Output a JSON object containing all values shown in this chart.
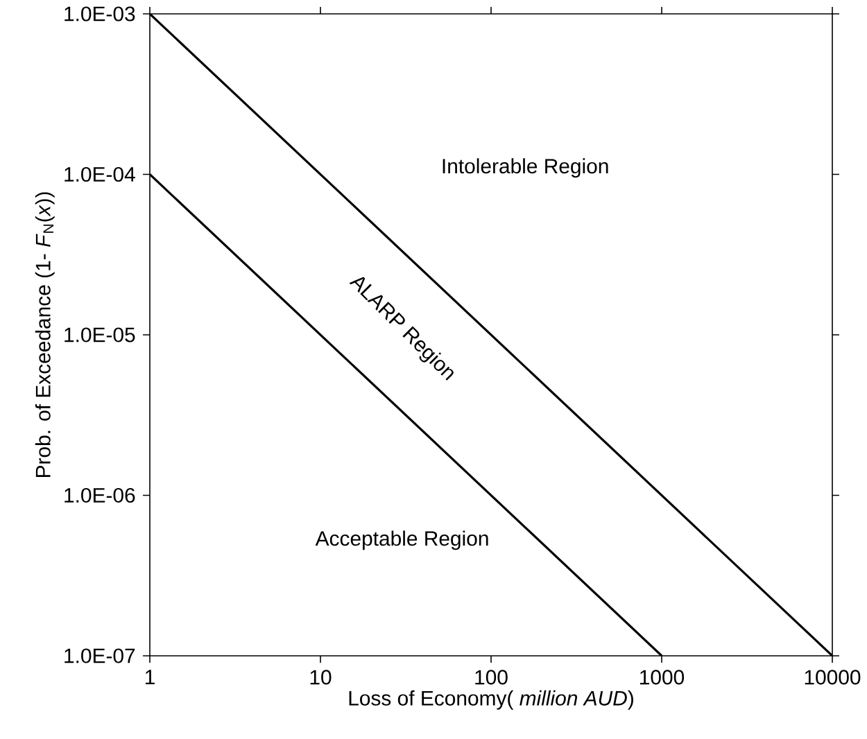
{
  "chart_data": {
    "type": "line",
    "xlabel": "Loss of Economy( *million AUD*)",
    "ylabel": "Prob. of Exceedance (1- *F*$_{N}$(*x*))",
    "log": "xy",
    "grid": false,
    "marker": "none",
    "line_style": "solid",
    "xlim": [
      1,
      10000
    ],
    "xticks": [
      1,
      10,
      100,
      1000,
      10000
    ],
    "ylim": [
      1e-07,
      0.001
    ],
    "yticks": [
      {
        "value": 1e-07,
        "label": "1.0E-07"
      },
      {
        "value": 1e-06,
        "label": "1.0E-06"
      },
      {
        "value": 1e-05,
        "label": "1.0E-05"
      },
      {
        "value": 0.0001,
        "label": "1.0E-04"
      },
      {
        "value": 0.001,
        "label": "1.0E-03"
      }
    ],
    "series": [
      {
        "color": "#000000",
        "x": [
          1,
          10000
        ],
        "values": [
          0.001,
          1e-07
        ]
      },
      {
        "color": "#000000",
        "x": [
          1,
          1000
        ],
        "values": [
          0.0001,
          1e-07
        ]
      }
    ],
    "annotations": [
      "Intolerable Region",
      "ALARP Region",
      "Acceptable Region"
    ]
  }
}
